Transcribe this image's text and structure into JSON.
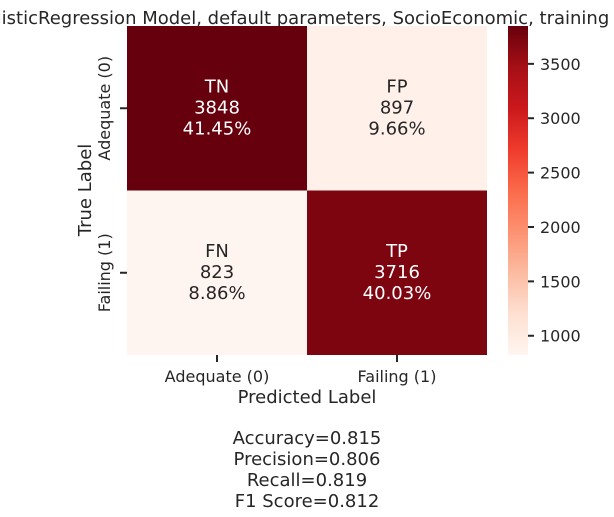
{
  "chart_data": {
    "type": "heatmap",
    "title": "LogisticRegression Model, default parameters, SocioEconomic, training set",
    "xlabel": "Predicted Label",
    "ylabel": "True Label",
    "x_categories": [
      "Adequate (0)",
      "Failing (1)"
    ],
    "y_categories": [
      "Adequate (0)",
      "Failing (1)"
    ],
    "cells": [
      [
        {
          "name": "TN",
          "count": "3848",
          "percent": "41.45%",
          "value": 3848
        },
        {
          "name": "FP",
          "count": "897",
          "percent": "9.66%",
          "value": 897
        }
      ],
      [
        {
          "name": "FN",
          "count": "823",
          "percent": "8.86%",
          "value": 823
        },
        {
          "name": "TP",
          "count": "3716",
          "percent": "40.03%",
          "value": 3716
        }
      ]
    ],
    "colormap": "Reds",
    "colorbar": {
      "min": 823,
      "max": 3848,
      "ticks": [
        "1000",
        "1500",
        "2000",
        "2500",
        "3000",
        "3500"
      ],
      "tick_values": [
        1000,
        1500,
        2000,
        2500,
        3000,
        3500
      ]
    },
    "text_colors": {
      "dark_cell": "#ffffff",
      "light_cell": "#262626"
    }
  },
  "metrics": {
    "accuracy": "Accuracy=0.815",
    "precision": "Precision=0.806",
    "recall": "Recall=0.819",
    "f1": "F1 Score=0.812"
  }
}
